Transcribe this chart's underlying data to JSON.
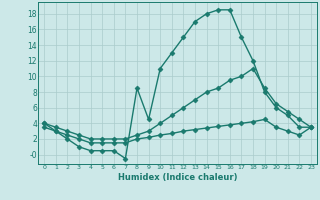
{
  "line1_x": [
    0,
    1,
    2,
    3,
    4,
    5,
    6,
    7,
    8,
    9,
    10,
    11,
    12,
    13,
    14,
    15,
    16,
    17,
    18,
    19,
    20,
    21,
    22,
    23
  ],
  "line1_y": [
    4,
    3,
    2,
    1,
    0.5,
    0.5,
    0.5,
    -0.5,
    8.5,
    4.5,
    11,
    13,
    15,
    17,
    18,
    18.5,
    18.5,
    15,
    12,
    8,
    6,
    5,
    3.5,
    3.5
  ],
  "line2_x": [
    0,
    1,
    2,
    3,
    4,
    5,
    6,
    7,
    8,
    9,
    10,
    11,
    12,
    13,
    14,
    15,
    16,
    17,
    18,
    19,
    20,
    21,
    22,
    23
  ],
  "line2_y": [
    4,
    3.5,
    3,
    2.5,
    2,
    2,
    2,
    2,
    2.5,
    3,
    4,
    5,
    6,
    7,
    8,
    8.5,
    9.5,
    10,
    11,
    8.5,
    6.5,
    5.5,
    4.5,
    3.5
  ],
  "line3_x": [
    0,
    1,
    2,
    3,
    4,
    5,
    6,
    7,
    8,
    9,
    10,
    11,
    12,
    13,
    14,
    15,
    16,
    17,
    18,
    19,
    20,
    21,
    22,
    23
  ],
  "line3_y": [
    3.5,
    3,
    2.5,
    2,
    1.5,
    1.5,
    1.5,
    1.5,
    2,
    2.2,
    2.5,
    2.7,
    3,
    3.2,
    3.4,
    3.6,
    3.8,
    4,
    4.2,
    4.5,
    3.5,
    3,
    2.5,
    3.5
  ],
  "color": "#1a7a6e",
  "bg_color": "#cce8e8",
  "grid_color": "#aacccc",
  "xlabel": "Humidex (Indice chaleur)",
  "xlim": [
    -0.5,
    23.5
  ],
  "ylim": [
    -1.2,
    19.5
  ],
  "yticks": [
    0,
    2,
    4,
    6,
    8,
    10,
    12,
    14,
    16,
    18
  ],
  "ytick_labels": [
    "-0",
    "2",
    "4",
    "6",
    "8",
    "10",
    "12",
    "14",
    "16",
    "18"
  ],
  "xticks": [
    0,
    1,
    2,
    3,
    4,
    5,
    6,
    7,
    8,
    9,
    10,
    11,
    12,
    13,
    14,
    15,
    16,
    17,
    18,
    19,
    20,
    21,
    22,
    23
  ],
  "marker": "D",
  "markersize": 2.5,
  "linewidth": 1.0
}
